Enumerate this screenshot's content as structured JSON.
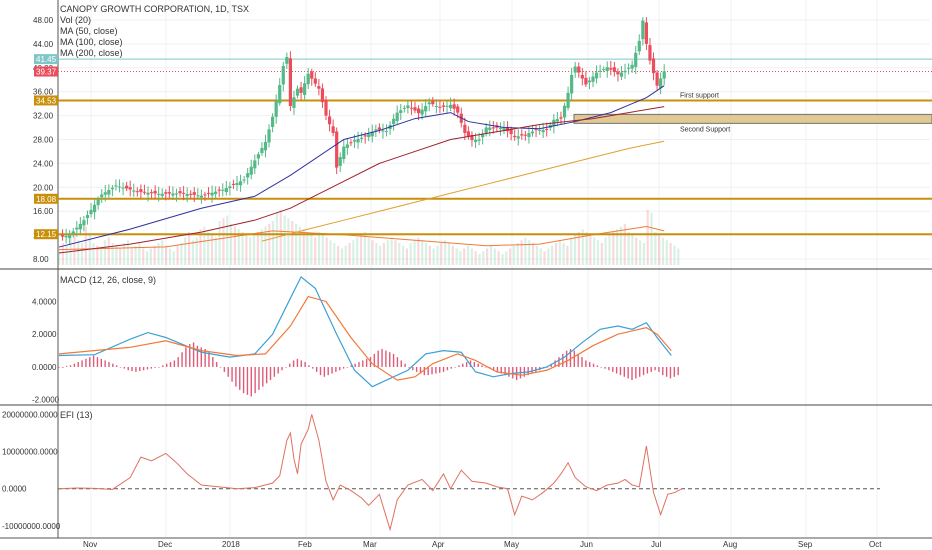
{
  "header": {
    "title": "CANOPY GROWTH CORPORATION, 1D, TSX",
    "studies": [
      "Vol (20)",
      "MA (50, close)",
      "MA (100, close)",
      "MA (200, close)"
    ]
  },
  "macd_label": "MACD (12, 26, close, 9)",
  "efi_label": "EFI (13)",
  "colors": {
    "up": "#53b987",
    "down": "#eb4d5c",
    "ma50": "#3030a0",
    "ma100": "#a0202a",
    "ma200": "#e0a030",
    "support": "#c8900a",
    "macd": "#3ba0d8",
    "signal": "#f07a3c",
    "hist": "#e05a78",
    "efi": "#e07060",
    "price_badge": "#eb4d5c",
    "ref_badge": "#7fc7c7"
  },
  "chart_data": [
    {
      "type": "candlestick",
      "title": "CANOPY GROWTH CORPORATION, 1D, TSX",
      "x_ticks": [
        "Nov",
        "Dec",
        "2018",
        "Feb",
        "Mar",
        "Apr",
        "May",
        "Jun",
        "Jul",
        "Aug",
        "Sep",
        "Oct"
      ],
      "y_ticks": [
        8.0,
        12.0,
        16.0,
        20.0,
        24.0,
        28.0,
        32.0,
        36.0,
        40.0,
        44.0,
        48.0
      ],
      "ylim": [
        7,
        50
      ],
      "close_path": [
        [
          0,
          11.6
        ],
        [
          3,
          12.0
        ],
        [
          7,
          14.5
        ],
        [
          12,
          18.8
        ],
        [
          16,
          20.3
        ],
        [
          22,
          19.3
        ],
        [
          28,
          18.9
        ],
        [
          34,
          19.0
        ],
        [
          40,
          18.6
        ],
        [
          46,
          19.6
        ],
        [
          52,
          21.3
        ],
        [
          55,
          24.5
        ],
        [
          58,
          27.6
        ],
        [
          60,
          31.8
        ],
        [
          62,
          37.1
        ],
        [
          63,
          40.3
        ],
        [
          64,
          41.8
        ],
        [
          65,
          33.6
        ],
        [
          67,
          36.5
        ],
        [
          68,
          35.8
        ],
        [
          70,
          39.0
        ],
        [
          73,
          36.5
        ],
        [
          75,
          32.0
        ],
        [
          77,
          29.1
        ],
        [
          78,
          23.3
        ],
        [
          80,
          26.8
        ],
        [
          83,
          27.9
        ],
        [
          86,
          28.5
        ],
        [
          89,
          29.7
        ],
        [
          92,
          29.4
        ],
        [
          95,
          32.5
        ],
        [
          98,
          33.7
        ],
        [
          101,
          32.4
        ],
        [
          104,
          34.2
        ],
        [
          107,
          33.3
        ],
        [
          110,
          33.8
        ],
        [
          112,
          32.5
        ],
        [
          114,
          29.1
        ],
        [
          116,
          27.9
        ],
        [
          118,
          28.0
        ],
        [
          120,
          30.0
        ],
        [
          122,
          30.0
        ],
        [
          125,
          29.9
        ],
        [
          128,
          28.4
        ],
        [
          131,
          28.8
        ],
        [
          134,
          29.6
        ],
        [
          137,
          29.6
        ],
        [
          139,
          31.3
        ],
        [
          141,
          31.5
        ],
        [
          143,
          35.8
        ],
        [
          144,
          38.8
        ],
        [
          145,
          40.2
        ],
        [
          148,
          37.2
        ],
        [
          151,
          39.2
        ],
        [
          154,
          40.1
        ],
        [
          157,
          38.9
        ],
        [
          159,
          39.5
        ],
        [
          161,
          40.5
        ],
        [
          163,
          44.5
        ],
        [
          164,
          47.9
        ],
        [
          165,
          44.0
        ],
        [
          166,
          41.2
        ],
        [
          168,
          37.0
        ],
        [
          170,
          39.4
        ]
      ],
      "ma50": [
        [
          0,
          10.0
        ],
        [
          20,
          13.0
        ],
        [
          40,
          16.5
        ],
        [
          55,
          18.5
        ],
        [
          65,
          22.0
        ],
        [
          80,
          28.0
        ],
        [
          90,
          29.5
        ],
        [
          100,
          31.5
        ],
        [
          110,
          32.5
        ],
        [
          115,
          31.0
        ],
        [
          125,
          30.0
        ],
        [
          135,
          29.8
        ],
        [
          145,
          31.0
        ],
        [
          155,
          32.5
        ],
        [
          165,
          35.0
        ],
        [
          170,
          37.0
        ]
      ],
      "ma100": [
        [
          0,
          9.0
        ],
        [
          20,
          10.5
        ],
        [
          40,
          12.5
        ],
        [
          55,
          14.5
        ],
        [
          65,
          16.5
        ],
        [
          80,
          21.0
        ],
        [
          90,
          24.0
        ],
        [
          100,
          26.0
        ],
        [
          110,
          28.0
        ],
        [
          120,
          29.0
        ],
        [
          135,
          30.5
        ],
        [
          150,
          31.5
        ],
        [
          160,
          32.5
        ],
        [
          170,
          33.5
        ]
      ],
      "ma200": [
        [
          57,
          11.0
        ],
        [
          70,
          13.0
        ],
        [
          80,
          14.5
        ],
        [
          90,
          16.0
        ],
        [
          100,
          17.5
        ],
        [
          110,
          19.0
        ],
        [
          120,
          20.5
        ],
        [
          130,
          22.0
        ],
        [
          140,
          23.5
        ],
        [
          150,
          25.0
        ],
        [
          160,
          26.5
        ],
        [
          170,
          27.7
        ]
      ],
      "volume": [
        30,
        40,
        35,
        50,
        60,
        45,
        40,
        70,
        55,
        40,
        35,
        30,
        45,
        50,
        40,
        35,
        30,
        40,
        45,
        30,
        35,
        40,
        30,
        25,
        30,
        35,
        40,
        45,
        35,
        30,
        25,
        35,
        40,
        50,
        60,
        45,
        50,
        65,
        70,
        60,
        55,
        50,
        80,
        85,
        90,
        75,
        70,
        65,
        60,
        55,
        50,
        55,
        60,
        65,
        70,
        75,
        80,
        95,
        100,
        90,
        85,
        80,
        75,
        70,
        65,
        60,
        55,
        50,
        60,
        55,
        50,
        45,
        40,
        35,
        30,
        35,
        40,
        45,
        50,
        55,
        60,
        50,
        45,
        40,
        35,
        40,
        45,
        50,
        45,
        40,
        35,
        30,
        40,
        45,
        50,
        45,
        40,
        35,
        30,
        35,
        40,
        45,
        40,
        35,
        30,
        25,
        30,
        35,
        30,
        25,
        20,
        25,
        30,
        35,
        30,
        25,
        20,
        25,
        30,
        35,
        40,
        45,
        50,
        45,
        40,
        35,
        30,
        25,
        30,
        35,
        40,
        45,
        40,
        35,
        50,
        55,
        60,
        65,
        60,
        55,
        50,
        45,
        40,
        50,
        55,
        60,
        65,
        70,
        75,
        60,
        55,
        50,
        45,
        40,
        100,
        95,
        60,
        55,
        50,
        45,
        40,
        35,
        30
      ],
      "vol_ma": [
        [
          0,
          28
        ],
        [
          30,
          33
        ],
        [
          60,
          62
        ],
        [
          80,
          55
        ],
        [
          100,
          45
        ],
        [
          120,
          35
        ],
        [
          135,
          38
        ],
        [
          150,
          55
        ],
        [
          160,
          65
        ],
        [
          165,
          70
        ],
        [
          170,
          62
        ]
      ],
      "support_levels": [
        34.53,
        18.08,
        12.15
      ],
      "support_zone": [
        30.7,
        32.2
      ],
      "annotations": [
        "First support",
        "Second Support"
      ],
      "last_price": "39.37",
      "ref_price": "41.45",
      "level_labels": [
        "34.53",
        "18.08",
        "12.15"
      ]
    },
    {
      "type": "line",
      "title": "MACD (12, 26, close, 9)",
      "y_ticks": [
        "4.0000",
        "2.0000",
        "0.0000",
        "-2.0000"
      ],
      "ylim": [
        -2.2,
        5.8
      ],
      "macd": [
        [
          0,
          0.7
        ],
        [
          10,
          0.75
        ],
        [
          20,
          1.7
        ],
        [
          25,
          2.1
        ],
        [
          30,
          1.8
        ],
        [
          40,
          0.9
        ],
        [
          48,
          0.6
        ],
        [
          55,
          0.8
        ],
        [
          60,
          2.0
        ],
        [
          65,
          4.2
        ],
        [
          68,
          5.5
        ],
        [
          72,
          4.8
        ],
        [
          78,
          2.0
        ],
        [
          83,
          -0.2
        ],
        [
          88,
          -1.2
        ],
        [
          92,
          -0.8
        ],
        [
          98,
          -0.2
        ],
        [
          103,
          0.8
        ],
        [
          108,
          1.0
        ],
        [
          113,
          0.9
        ],
        [
          117,
          -0.3
        ],
        [
          122,
          -0.6
        ],
        [
          127,
          -0.4
        ],
        [
          132,
          -0.3
        ],
        [
          137,
          0.0
        ],
        [
          142,
          0.6
        ],
        [
          147,
          1.5
        ],
        [
          152,
          2.3
        ],
        [
          157,
          2.5
        ],
        [
          161,
          2.3
        ],
        [
          165,
          2.7
        ],
        [
          168,
          1.8
        ],
        [
          172,
          0.7
        ]
      ],
      "signal": [
        [
          0,
          0.8
        ],
        [
          20,
          1.2
        ],
        [
          30,
          1.6
        ],
        [
          40,
          1.0
        ],
        [
          50,
          0.7
        ],
        [
          58,
          0.8
        ],
        [
          65,
          2.5
        ],
        [
          70,
          4.3
        ],
        [
          75,
          4.0
        ],
        [
          82,
          1.8
        ],
        [
          88,
          0.2
        ],
        [
          95,
          -0.8
        ],
        [
          100,
          -0.6
        ],
        [
          105,
          0.2
        ],
        [
          112,
          0.8
        ],
        [
          117,
          0.4
        ],
        [
          123,
          -0.3
        ],
        [
          130,
          -0.5
        ],
        [
          137,
          -0.2
        ],
        [
          143,
          0.4
        ],
        [
          150,
          1.3
        ],
        [
          157,
          2.0
        ],
        [
          165,
          2.4
        ],
        [
          168,
          2.0
        ],
        [
          172,
          1.0
        ]
      ],
      "hist": [
        0.0,
        -0.05,
        0.05,
        0.1,
        0.2,
        0.3,
        0.4,
        0.5,
        0.6,
        0.7,
        0.6,
        0.5,
        0.4,
        0.3,
        0.2,
        0.1,
        0.0,
        -0.1,
        -0.2,
        -0.25,
        -0.3,
        -0.25,
        -0.2,
        -0.15,
        -0.1,
        -0.05,
        0.0,
        0.1,
        0.2,
        0.3,
        0.4,
        0.6,
        0.9,
        1.2,
        1.4,
        1.5,
        1.3,
        1.2,
        1.1,
        0.9,
        0.6,
        0.3,
        0.0,
        -0.3,
        -0.6,
        -0.9,
        -1.2,
        -1.4,
        -1.6,
        -1.7,
        -1.8,
        -1.6,
        -1.4,
        -1.2,
        -1.0,
        -0.8,
        -0.6,
        -0.4,
        -0.2,
        0.0,
        0.2,
        0.4,
        0.5,
        0.4,
        0.3,
        0.1,
        -0.1,
        -0.3,
        -0.5,
        -0.6,
        -0.5,
        -0.4,
        -0.3,
        -0.2,
        -0.1,
        0.0,
        0.1,
        0.2,
        0.3,
        0.4,
        0.5,
        0.6,
        0.8,
        1.0,
        1.1,
        1.0,
        0.9,
        0.8,
        0.6,
        0.4,
        0.2,
        0.0,
        -0.2,
        -0.3,
        -0.4,
        -0.5,
        -0.5,
        -0.45,
        -0.4,
        -0.35,
        -0.3,
        -0.2,
        -0.1,
        0.0,
        0.1,
        0.2,
        0.3,
        0.4,
        0.3,
        0.2,
        0.1,
        0.0,
        -0.1,
        -0.2,
        -0.3,
        -0.4,
        -0.5,
        -0.6,
        -0.7,
        -0.8,
        -0.7,
        -0.6,
        -0.5,
        -0.4,
        -0.3,
        -0.2,
        -0.1,
        0.0,
        0.2,
        0.4,
        0.6,
        0.8,
        1.0,
        1.1,
        1.0,
        0.8,
        0.6,
        0.4,
        0.3,
        0.2,
        0.1,
        0.0,
        -0.1,
        -0.2,
        -0.3,
        -0.4,
        -0.5,
        -0.6,
        -0.7,
        -0.8,
        -0.7,
        -0.6,
        -0.5,
        -0.4,
        -0.3,
        -0.2,
        -0.3,
        -0.5,
        -0.6,
        -0.7,
        -0.6,
        -0.5
      ]
    },
    {
      "type": "line",
      "title": "EFI (13)",
      "y_ticks": [
        "20000000.0000",
        "10000000.0000",
        "0.0000",
        "-10000000.0000"
      ],
      "ylim": [
        -13000000,
        22000000
      ],
      "efi": [
        [
          0,
          0
        ],
        [
          5,
          200000
        ],
        [
          10,
          100000
        ],
        [
          15,
          -200000
        ],
        [
          20,
          3000000
        ],
        [
          23,
          8500000
        ],
        [
          26,
          7500000
        ],
        [
          30,
          9500000
        ],
        [
          33,
          7000000
        ],
        [
          36,
          4000000
        ],
        [
          40,
          1000000
        ],
        [
          45,
          500000
        ],
        [
          50,
          0
        ],
        [
          55,
          300000
        ],
        [
          60,
          1500000
        ],
        [
          62,
          3500000
        ],
        [
          64,
          13000000
        ],
        [
          65,
          15000000
        ],
        [
          66,
          8000000
        ],
        [
          67,
          4000000
        ],
        [
          68,
          12000000
        ],
        [
          70,
          16000000
        ],
        [
          71,
          20000000
        ],
        [
          73,
          13000000
        ],
        [
          75,
          2000000
        ],
        [
          77,
          -3000000
        ],
        [
          79,
          1000000
        ],
        [
          82,
          -500000
        ],
        [
          85,
          -2500000
        ],
        [
          87,
          -4500000
        ],
        [
          90,
          -1500000
        ],
        [
          93,
          -11000000
        ],
        [
          95,
          -3000000
        ],
        [
          98,
          1000000
        ],
        [
          102,
          2500000
        ],
        [
          105,
          -500000
        ],
        [
          108,
          4000000
        ],
        [
          110,
          0
        ],
        [
          113,
          5000000
        ],
        [
          116,
          2000000
        ],
        [
          120,
          1500000
        ],
        [
          123,
          500000
        ],
        [
          126,
          0
        ],
        [
          128,
          -7000000
        ],
        [
          130,
          -2000000
        ],
        [
          133,
          -3000000
        ],
        [
          136,
          -1000000
        ],
        [
          139,
          1500000
        ],
        [
          141,
          4000000
        ],
        [
          143,
          7000000
        ],
        [
          145,
          3000000
        ],
        [
          148,
          500000
        ],
        [
          151,
          -500000
        ],
        [
          154,
          1000000
        ],
        [
          157,
          1500000
        ],
        [
          159,
          2500000
        ],
        [
          161,
          1000000
        ],
        [
          163,
          500000
        ],
        [
          165,
          11500000
        ],
        [
          167,
          -1000000
        ],
        [
          169,
          -7000000
        ],
        [
          171,
          -1500000
        ],
        [
          173,
          -1000000
        ],
        [
          175,
          0
        ]
      ]
    }
  ]
}
